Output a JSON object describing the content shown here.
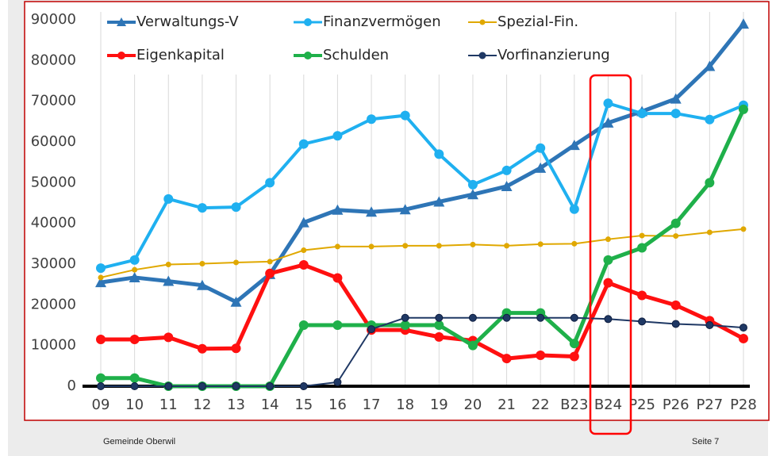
{
  "chart_data": {
    "type": "line",
    "categories": [
      "09",
      "10",
      "11",
      "12",
      "13",
      "14",
      "15",
      "16",
      "17",
      "18",
      "19",
      "20",
      "21",
      "22",
      "B23",
      "B24",
      "P25",
      "P26",
      "P27",
      "P28"
    ],
    "series": [
      {
        "name": "Verwaltungs-V",
        "color": "#2e75b6",
        "marker": "triangle",
        "values": [
          25500,
          26700,
          25800,
          24800,
          20700,
          27500,
          40200,
          43300,
          42800,
          43400,
          45300,
          47100,
          49100,
          53600,
          59200,
          64700,
          67500,
          70600,
          78600,
          89000
        ]
      },
      {
        "name": "Finanzvermögen",
        "color": "#1fb0f0",
        "marker": "circle",
        "values": [
          29000,
          31000,
          46000,
          43800,
          44000,
          50000,
          59500,
          61500,
          65600,
          66500,
          57000,
          49500,
          53000,
          58500,
          43500,
          69500,
          67000,
          67000,
          65500,
          69000
        ]
      },
      {
        "name": "Spezial-Fin.",
        "color": "#e0a800",
        "marker": "circle",
        "values": [
          26700,
          28600,
          29900,
          30100,
          30400,
          30600,
          33400,
          34300,
          34300,
          34500,
          34500,
          34800,
          34500,
          34900,
          35000,
          36100,
          37000,
          36900,
          37800,
          38600
        ]
      },
      {
        "name": "Eigenkapital",
        "color": "#ff1010",
        "marker": "circle",
        "values": [
          11500,
          11500,
          12000,
          9200,
          9300,
          27700,
          29800,
          26600,
          13800,
          13800,
          12100,
          11200,
          6800,
          7600,
          7300,
          25400,
          22300,
          19900,
          16100,
          11700
        ]
      },
      {
        "name": "Schulden",
        "color": "#1fb04a",
        "marker": "circle",
        "values": [
          2000,
          2000,
          0,
          0,
          0,
          0,
          15000,
          15000,
          15000,
          15000,
          15000,
          10000,
          18000,
          18000,
          10500,
          31000,
          34000,
          40000,
          50000,
          68000
        ]
      },
      {
        "name": "Vorfinanzierung",
        "color": "#1f3864",
        "marker": "circle",
        "values": [
          0,
          0,
          0,
          0,
          0,
          0,
          0,
          1000,
          14000,
          16800,
          16800,
          16800,
          16800,
          16800,
          16800,
          16500,
          15900,
          15300,
          15000,
          14400
        ]
      }
    ],
    "ylim": [
      0,
      90000
    ],
    "yticks": [
      0,
      10000,
      20000,
      30000,
      40000,
      50000,
      60000,
      70000,
      80000,
      90000
    ],
    "grid": true,
    "legend": "top",
    "footer_left": "Gemeinde Oberwil",
    "footer_right": "Seite 7"
  }
}
